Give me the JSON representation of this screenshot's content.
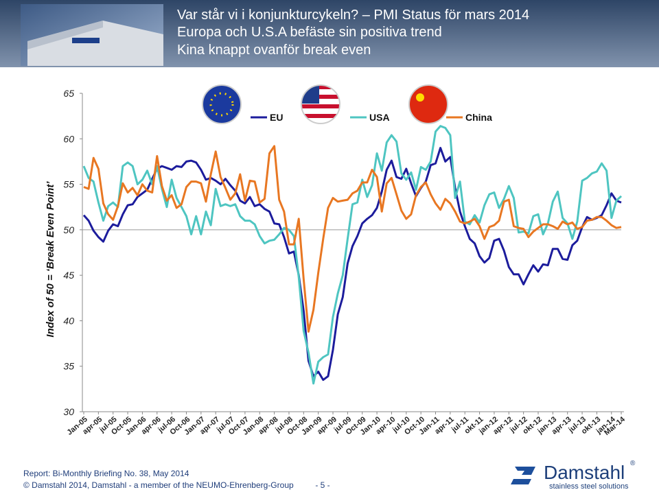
{
  "header": {
    "title_lines": [
      "Var står vi i konjunkturcykeln? – PMI Status för mars 2014",
      "Europa och U.S.A befäste sin positiva trend",
      "Kina knappt ovanför break even"
    ]
  },
  "chart_data": {
    "type": "line",
    "y_label": "Index of 50 = ‘Break Even Point’",
    "ylim": [
      30,
      65
    ],
    "yticks": [
      30,
      35,
      40,
      45,
      50,
      55,
      60,
      65
    ],
    "reference_line": 50,
    "legend": "top",
    "categories": [
      "Jan-05",
      null,
      null,
      "apr-05",
      null,
      null,
      "jul-05",
      null,
      null,
      "Oct-05",
      null,
      null,
      "Jan-06",
      null,
      null,
      "apr-06",
      null,
      null,
      "jul-06",
      null,
      null,
      "Oct-06",
      null,
      null,
      "Jan-07",
      null,
      null,
      "apr-07",
      null,
      null,
      "jul-07",
      null,
      null,
      "Oct-07",
      null,
      null,
      "Jan-08",
      null,
      null,
      "apr-08",
      null,
      null,
      "jul-08",
      null,
      null,
      "Oct-08",
      null,
      null,
      "Jan-09",
      null,
      null,
      "apr-09",
      null,
      null,
      "jul-09",
      null,
      null,
      "Oct-09",
      null,
      null,
      "Jan-10",
      null,
      null,
      "apr-10",
      null,
      null,
      "jul-10",
      null,
      null,
      "Oct-10",
      null,
      null,
      "Jan-11",
      null,
      null,
      "apr-11",
      null,
      null,
      "jul-11",
      null,
      null,
      "okt-11",
      null,
      null,
      "jan-12",
      null,
      null,
      "apr-12",
      null,
      null,
      "jul-12",
      null,
      null,
      "okt-12",
      null,
      null,
      "jan-13",
      null,
      null,
      "apr-13",
      null,
      null,
      "jul-13",
      null,
      null,
      "okt-13",
      null,
      null,
      "jan-14",
      null,
      "Mar-14"
    ],
    "series": [
      {
        "name": "EU",
        "color": "#1c1c9c",
        "values": [
          51.6,
          51.0,
          49.9,
          49.2,
          48.7,
          49.9,
          50.6,
          50.4,
          51.7,
          52.7,
          52.8,
          53.6,
          54.0,
          54.4,
          55.6,
          56.7,
          57.0,
          56.8,
          56.6,
          57.0,
          56.9,
          57.5,
          57.6,
          57.4,
          56.6,
          55.5,
          55.7,
          55.4,
          55.0,
          55.6,
          54.9,
          54.3,
          53.2,
          52.9,
          53.6,
          52.6,
          52.8,
          52.3,
          52.0,
          50.7,
          50.6,
          49.2,
          47.4,
          47.6,
          45.0,
          41.1,
          35.6,
          33.9,
          34.4,
          33.5,
          33.9,
          36.8,
          40.7,
          42.6,
          46.3,
          48.2,
          49.3,
          50.7,
          51.2,
          51.6,
          52.4,
          54.2,
          56.6,
          57.6,
          55.8,
          55.6,
          56.7,
          55.1,
          53.7,
          54.6,
          55.3,
          57.1,
          57.3,
          59.0,
          57.5,
          58.0,
          54.6,
          52.0,
          50.4,
          49.0,
          48.5,
          47.1,
          46.4,
          46.9,
          48.8,
          49.0,
          47.7,
          45.9,
          45.1,
          45.1,
          44.0,
          45.1,
          46.1,
          45.4,
          46.2,
          46.1,
          47.9,
          47.9,
          46.8,
          46.7,
          48.3,
          48.8,
          50.3,
          51.4,
          51.1,
          51.3,
          51.6,
          52.7,
          54.0,
          53.2,
          53.0
        ]
      },
      {
        "name": "USA",
        "color": "#4ec5c1",
        "values": [
          57.0,
          55.7,
          55.3,
          53.0,
          51.0,
          52.6,
          53.0,
          52.5,
          57.0,
          57.4,
          57.0,
          55.0,
          55.5,
          56.5,
          55.0,
          57.0,
          54.5,
          52.5,
          55.5,
          53.5,
          52.5,
          51.5,
          49.5,
          51.5,
          49.5,
          52.0,
          50.5,
          54.5,
          52.6,
          52.8,
          52.6,
          52.8,
          51.5,
          51.0,
          51.0,
          50.6,
          49.3,
          48.5,
          48.8,
          48.9,
          49.5,
          50.2,
          50.0,
          49.3,
          44.8,
          38.9,
          36.5,
          33.1,
          35.5,
          36.0,
          36.3,
          40.4,
          43.0,
          45.0,
          49.0,
          52.8,
          53.0,
          55.5,
          53.6,
          54.9,
          58.4,
          56.5,
          59.6,
          60.4,
          59.7,
          56.2,
          55.5,
          56.3,
          54.4,
          56.9,
          56.6,
          57.5,
          60.8,
          61.4,
          61.2,
          60.4,
          53.5,
          55.3,
          50.9,
          50.6,
          51.6,
          50.8,
          52.7,
          53.9,
          54.1,
          52.4,
          53.4,
          54.8,
          53.5,
          49.7,
          49.8,
          49.6,
          51.5,
          51.7,
          49.5,
          50.7,
          53.1,
          54.2,
          51.3,
          50.7,
          49.0,
          50.9,
          55.4,
          55.7,
          56.2,
          56.4,
          57.3,
          56.5,
          51.3,
          53.2,
          53.7
        ]
      },
      {
        "name": "China",
        "color": "#e87722",
        "values": [
          54.7,
          54.5,
          57.9,
          56.7,
          52.9,
          51.7,
          51.1,
          52.6,
          55.1,
          54.1,
          54.6,
          53.8,
          55.0,
          54.3,
          54.1,
          58.1,
          54.8,
          53.2,
          53.8,
          52.4,
          52.8,
          54.7,
          55.3,
          55.3,
          55.1,
          53.1,
          56.1,
          58.6,
          55.8,
          54.6,
          53.3,
          54.0,
          56.1,
          53.2,
          55.4,
          55.3,
          53.0,
          53.4,
          58.4,
          59.2,
          53.3,
          52.0,
          48.4,
          48.4,
          51.2,
          44.6,
          38.8,
          41.2,
          45.3,
          49.0,
          52.4,
          53.5,
          53.1,
          53.2,
          53.3,
          54.0,
          54.3,
          55.2,
          55.2,
          56.6,
          55.8,
          52.0,
          55.1,
          55.7,
          53.9,
          52.1,
          51.2,
          51.7,
          53.8,
          54.7,
          55.2,
          53.9,
          52.9,
          52.2,
          53.4,
          52.9,
          52.0,
          50.9,
          50.7,
          50.9,
          51.2,
          50.4,
          49.0,
          50.3,
          50.5,
          51.0,
          53.1,
          53.3,
          50.4,
          50.2,
          50.1,
          49.2,
          49.8,
          50.2,
          50.6,
          50.6,
          50.4,
          50.1,
          50.9,
          50.6,
          50.8,
          50.1,
          50.3,
          51.0,
          51.1,
          51.4,
          51.4,
          51.0,
          50.5,
          50.2,
          50.3
        ]
      }
    ]
  },
  "footer": {
    "report": "Report: Bi-Monthly Briefing No. 38, May 2014",
    "copyright": "© Damstahl 2014, Damstahl - a member of the NEUMO-Ehrenberg-Group",
    "page": "- 5 -",
    "logo_name": "Damstahl",
    "logo_mark": "®",
    "tagline": "stainless steel solutions"
  }
}
